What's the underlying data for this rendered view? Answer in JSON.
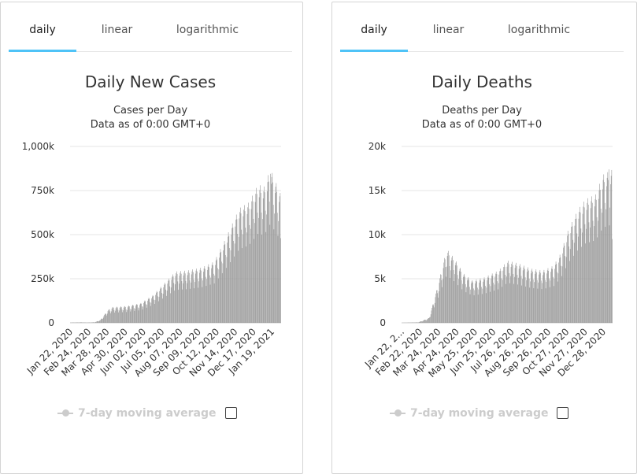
{
  "tabs": [
    "daily",
    "linear",
    "logarithmic"
  ],
  "legend_label": "7-day moving average",
  "colors": {
    "bar": "#999999",
    "tab_accent": "#4fc3f7",
    "legend_disabled": "#cccccc"
  },
  "chart_data": [
    {
      "type": "bar",
      "title": "Daily New Cases",
      "subtitle": [
        "Cases per Day",
        "Data as of 0:00 GMT+0"
      ],
      "xlabel": "",
      "ylabel": "",
      "ylim": [
        0,
        1000000
      ],
      "yticks": [
        0,
        250000,
        500000,
        750000,
        1000000
      ],
      "ytick_labels": [
        "0",
        "250k",
        "500k",
        "750k",
        "1,000k"
      ],
      "xtick_labels": [
        "Jan 22, 2020",
        "Feb 24, 2020",
        "Mar 28, 2020",
        "Apr 30, 2020",
        "Jun 02, 2020",
        "Jul 05, 2020",
        "Aug 07, 2020",
        "Sep 09, 2020",
        "Oct 12, 2020",
        "Nov 14, 2020",
        "Dec 17, 2020",
        "Jan 19, 2021"
      ],
      "start_date": "2020-01-22",
      "end_date": "2021-01-26",
      "weekly_profile": [
        [
          "2020-01-22",
          1000
        ],
        [
          "2020-02-10",
          2500
        ],
        [
          "2020-02-20",
          1000
        ],
        [
          "2020-03-05",
          3000
        ],
        [
          "2020-03-15",
          15000
        ],
        [
          "2020-03-28",
          65000
        ],
        [
          "2020-04-05",
          80000
        ],
        [
          "2020-04-30",
          85000
        ],
        [
          "2020-05-25",
          100000
        ],
        [
          "2020-06-15",
          140000
        ],
        [
          "2020-07-05",
          200000
        ],
        [
          "2020-07-25",
          260000
        ],
        [
          "2020-08-15",
          265000
        ],
        [
          "2020-09-09",
          280000
        ],
        [
          "2020-10-01",
          310000
        ],
        [
          "2020-10-20",
          420000
        ],
        [
          "2020-11-14",
          580000
        ],
        [
          "2020-12-01",
          610000
        ],
        [
          "2020-12-17",
          700000
        ],
        [
          "2020-12-28",
          690000
        ],
        [
          "2021-01-08",
          780000
        ],
        [
          "2021-01-19",
          700000
        ],
        [
          "2021-01-26",
          650000
        ]
      ],
      "peak": {
        "date": "2021-01-08",
        "value": 845000
      },
      "last_value": 480000
    },
    {
      "type": "bar",
      "title": "Daily Deaths",
      "subtitle": [
        "Deaths per Day",
        "Data as of 0:00 GMT+0"
      ],
      "xlabel": "",
      "ylabel": "",
      "ylim": [
        0,
        20000
      ],
      "yticks": [
        0,
        5000,
        10000,
        15000,
        20000
      ],
      "ytick_labels": [
        "0",
        "5k",
        "10k",
        "15k",
        "20k"
      ],
      "xtick_labels": [
        "Jan 22, 2...",
        "Feb 22, 2020",
        "Mar 24, 2020",
        "Apr 24, 2020",
        "May 25, 2020",
        "Jun 25, 2020",
        "Jul 26, 2020",
        "Aug 26, 2020",
        "Sep 26, 2020",
        "Oct 27, 2020",
        "Nov 27, 2020",
        "Dec 28, 2020"
      ],
      "start_date": "2020-01-22",
      "end_date": "2021-01-26",
      "weekly_profile": [
        [
          "2020-01-22",
          0
        ],
        [
          "2020-02-20",
          50
        ],
        [
          "2020-03-10",
          500
        ],
        [
          "2020-03-24",
          3500
        ],
        [
          "2020-04-10",
          7500
        ],
        [
          "2020-04-24",
          6500
        ],
        [
          "2020-05-10",
          5000
        ],
        [
          "2020-05-25",
          4300
        ],
        [
          "2020-06-15",
          4600
        ],
        [
          "2020-07-10",
          5300
        ],
        [
          "2020-07-26",
          6300
        ],
        [
          "2020-08-15",
          6000
        ],
        [
          "2020-09-05",
          5500
        ],
        [
          "2020-09-26",
          5300
        ],
        [
          "2020-10-15",
          5800
        ],
        [
          "2020-10-27",
          7000
        ],
        [
          "2020-11-10",
          9500
        ],
        [
          "2020-11-27",
          11500
        ],
        [
          "2020-12-10",
          12500
        ],
        [
          "2020-12-28",
          13000
        ],
        [
          "2021-01-10",
          15000
        ],
        [
          "2021-01-26",
          15500
        ]
      ],
      "peak": {
        "date": "2021-01-20",
        "value": 17400
      },
      "last_value": 9500
    }
  ]
}
